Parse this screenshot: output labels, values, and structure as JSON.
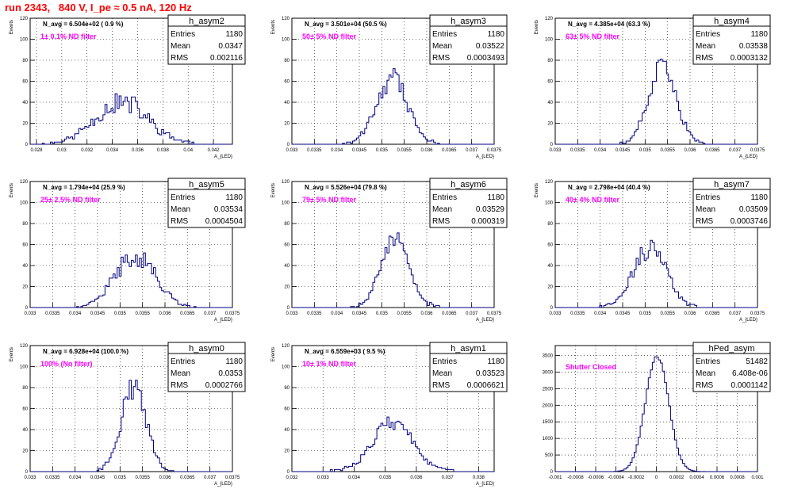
{
  "page": {
    "title": "run 2343,   840 V, I_pe ≈ 0.5 nA, 120 Hz"
  },
  "chart_data": [
    {
      "type": "bar",
      "name": "h_asym2",
      "stats": {
        "entries": "1180",
        "mean": "0.0347",
        "rms": "0.002116"
      },
      "navg": "N_avg = 6.504e+02 ( 0.9 %)",
      "filter": "1± 0.1% ND filter",
      "ylabel": "Events",
      "xlabel": "A_{LED}",
      "xlim": [
        0.0275,
        0.0435
      ],
      "ylim": [
        0,
        120
      ],
      "xticks": [
        "0.028",
        "0.03",
        "0.032",
        "0.034",
        "0.036",
        "0.038",
        "0.04",
        "0.042"
      ],
      "xtick_values": [
        0.028,
        0.03,
        0.032,
        0.034,
        0.036,
        0.038,
        0.04,
        0.042
      ],
      "yticks": [
        "0",
        "20",
        "40",
        "60",
        "80",
        "100",
        "120"
      ],
      "ytick_values": [
        0,
        20,
        40,
        60,
        80,
        100,
        120
      ],
      "hist": {
        "mean": 0.0347,
        "sigma": 0.0021,
        "peak": 40,
        "noise": 0.28,
        "seed": 11,
        "bins": 100
      }
    },
    {
      "type": "bar",
      "name": "h_asym3",
      "stats": {
        "entries": "1180",
        "mean": "0.03522",
        "rms": "0.0003493"
      },
      "navg": "N_avg = 3.501e+04 (50.5 %)",
      "filter": "50± 5% ND filter",
      "ylabel": "Events",
      "xlabel": "A_{LED}",
      "xlim": [
        0.033,
        0.0375
      ],
      "ylim": [
        0,
        120
      ],
      "xticks": [
        "0.033",
        "0.0335",
        "0.034",
        "0.0345",
        "0.035",
        "0.0355",
        "0.036",
        "0.0365",
        "0.037",
        "0.0375"
      ],
      "xtick_values": [
        0.033,
        0.0335,
        0.034,
        0.0345,
        0.035,
        0.0355,
        0.036,
        0.0365,
        0.037,
        0.0375
      ],
      "yticks": [
        "0",
        "20",
        "40",
        "60",
        "80",
        "100",
        "120"
      ],
      "ytick_values": [
        0,
        20,
        40,
        60,
        80,
        100,
        120
      ],
      "hist": {
        "mean": 0.03522,
        "sigma": 0.00035,
        "peak": 62,
        "noise": 0.18,
        "seed": 23,
        "bins": 100
      }
    },
    {
      "type": "bar",
      "name": "h_asym4",
      "stats": {
        "entries": "1180",
        "mean": "0.03538",
        "rms": "0.0003132"
      },
      "navg": "N_avg = 4.385e+04 (63.3 %)",
      "filter": "63± 5% ND filter",
      "ylabel": "Events",
      "xlabel": "A_{LED}",
      "xlim": [
        0.033,
        0.0375
      ],
      "ylim": [
        0,
        120
      ],
      "xticks": [
        "0.033",
        "0.0335",
        "0.034",
        "0.0345",
        "0.035",
        "0.0355",
        "0.036",
        "0.0365",
        "0.037",
        "0.0375"
      ],
      "xtick_values": [
        0.033,
        0.0335,
        0.034,
        0.0345,
        0.035,
        0.0355,
        0.036,
        0.0365,
        0.037,
        0.0375
      ],
      "yticks": [
        "0",
        "20",
        "40",
        "60",
        "80",
        "100",
        "120"
      ],
      "ytick_values": [
        0,
        20,
        40,
        60,
        80,
        100,
        120
      ],
      "hist": {
        "mean": 0.03538,
        "sigma": 0.00031,
        "peak": 72,
        "noise": 0.16,
        "seed": 37,
        "bins": 100
      }
    },
    {
      "type": "bar",
      "name": "h_asym5",
      "stats": {
        "entries": "1180",
        "mean": "0.03534",
        "rms": "0.0004504"
      },
      "navg": "N_avg = 1.794e+04 (25.9 %)",
      "filter": "25± 2.5% ND filter",
      "ylabel": "Events",
      "xlabel": "A_{LED}",
      "xlim": [
        0.033,
        0.0375
      ],
      "ylim": [
        0,
        120
      ],
      "xticks": [
        "0.033",
        "0.0335",
        "0.034",
        "0.0345",
        "0.035",
        "0.0355",
        "0.036",
        "0.0365",
        "0.037",
        "0.0375"
      ],
      "xtick_values": [
        0.033,
        0.0335,
        0.034,
        0.0345,
        0.035,
        0.0355,
        0.036,
        0.0365,
        0.037,
        0.0375
      ],
      "yticks": [
        "0",
        "20",
        "40",
        "60",
        "80",
        "100",
        "120"
      ],
      "ytick_values": [
        0,
        20,
        40,
        60,
        80,
        100,
        120
      ],
      "hist": {
        "mean": 0.03534,
        "sigma": 0.00045,
        "peak": 50,
        "noise": 0.2,
        "seed": 41,
        "bins": 100
      }
    },
    {
      "type": "bar",
      "name": "h_asym6",
      "stats": {
        "entries": "1180",
        "mean": "0.03529",
        "rms": "0.000319"
      },
      "navg": "N_avg = 5.526e+04 (79.8 %)",
      "filter": "79± 5% ND filter",
      "ylabel": "Events",
      "xlabel": "A_{LED}",
      "xlim": [
        0.033,
        0.0375
      ],
      "ylim": [
        0,
        120
      ],
      "xticks": [
        "0.033",
        "0.0335",
        "0.034",
        "0.0345",
        "0.035",
        "0.0355",
        "0.036",
        "0.0365",
        "0.037",
        "0.0375"
      ],
      "xtick_values": [
        0.033,
        0.0335,
        0.034,
        0.0345,
        0.035,
        0.0355,
        0.036,
        0.0365,
        0.037,
        0.0375
      ],
      "yticks": [
        "0",
        "20",
        "40",
        "60",
        "80",
        "100",
        "120"
      ],
      "ytick_values": [
        0,
        20,
        40,
        60,
        80,
        100,
        120
      ],
      "hist": {
        "mean": 0.03529,
        "sigma": 0.00032,
        "peak": 64,
        "noise": 0.16,
        "seed": 53,
        "bins": 100
      }
    },
    {
      "type": "bar",
      "name": "h_asym7",
      "stats": {
        "entries": "1180",
        "mean": "0.03509",
        "rms": "0.0003746"
      },
      "navg": "N_avg = 2.798e+04 (40.4 %)",
      "filter": "40± 4% ND filter",
      "ylabel": "Events",
      "xlabel": "A_{LED}",
      "xlim": [
        0.033,
        0.0375
      ],
      "ylim": [
        0,
        120
      ],
      "xticks": [
        "0.033",
        "0.0335",
        "0.034",
        "0.0345",
        "0.035",
        "0.0355",
        "0.036",
        "0.0365",
        "0.037",
        "0.0375"
      ],
      "xtick_values": [
        0.033,
        0.0335,
        0.034,
        0.0345,
        0.035,
        0.0355,
        0.036,
        0.0365,
        0.037,
        0.0375
      ],
      "yticks": [
        "0",
        "20",
        "40",
        "60",
        "80",
        "100",
        "120"
      ],
      "ytick_values": [
        0,
        20,
        40,
        60,
        80,
        100,
        120
      ],
      "hist": {
        "mean": 0.03509,
        "sigma": 0.00037,
        "peak": 56,
        "noise": 0.22,
        "seed": 67,
        "bins": 100
      }
    },
    {
      "type": "bar",
      "name": "h_asym0",
      "stats": {
        "entries": "1180",
        "mean": "0.0353",
        "rms": "0.0002766"
      },
      "navg": "N_avg = 6.928e+04 (100.0 %)",
      "filter": "100% (No filter)",
      "ylabel": "Events",
      "xlabel": "A_{LED}",
      "xlim": [
        0.033,
        0.0375
      ],
      "ylim": [
        0,
        120
      ],
      "xticks": [
        "0.033",
        "0.0335",
        "0.034",
        "0.0345",
        "0.035",
        "0.0355",
        "0.036",
        "0.0365",
        "0.037",
        "0.0375"
      ],
      "xtick_values": [
        0.033,
        0.0335,
        0.034,
        0.0345,
        0.035,
        0.0355,
        0.036,
        0.0365,
        0.037,
        0.0375
      ],
      "yticks": [
        "0",
        "20",
        "40",
        "60",
        "80",
        "100",
        "120"
      ],
      "ytick_values": [
        0,
        20,
        40,
        60,
        80,
        100,
        120
      ],
      "hist": {
        "mean": 0.0353,
        "sigma": 0.00028,
        "peak": 80,
        "noise": 0.16,
        "seed": 79,
        "bins": 100
      }
    },
    {
      "type": "bar",
      "name": "h_asym1",
      "stats": {
        "entries": "1180",
        "mean": "0.03523",
        "rms": "0.0006621"
      },
      "navg": "N_avg = 6.559e+03 ( 9.5 %)",
      "filter": "10± 1% ND filter",
      "ylabel": "Events",
      "xlabel": "A_{LED}",
      "xlim": [
        0.032,
        0.0385
      ],
      "ylim": [
        0,
        120
      ],
      "xticks": [
        "0.032",
        "0.033",
        "0.034",
        "0.035",
        "0.036",
        "0.037",
        "0.038"
      ],
      "xtick_values": [
        0.032,
        0.033,
        0.034,
        0.035,
        0.036,
        0.037,
        0.038
      ],
      "yticks": [
        "0",
        "20",
        "40",
        "60",
        "80",
        "100",
        "120"
      ],
      "ytick_values": [
        0,
        20,
        40,
        60,
        80,
        100,
        120
      ],
      "hist": {
        "mean": 0.03523,
        "sigma": 0.00066,
        "peak": 46,
        "noise": 0.18,
        "seed": 83,
        "bins": 100
      }
    },
    {
      "type": "bar",
      "name": "hPed_asym",
      "stats": {
        "entries": "51482",
        "mean": "6.408e-06",
        "rms": "0.0001142"
      },
      "navg": "",
      "filter": "Shutter Closed",
      "ylabel": "",
      "xlabel": "",
      "xlim": [
        -0.001,
        0.001
      ],
      "ylim": [
        0,
        3800
      ],
      "xticks": [
        "-0.001",
        "-0.0008",
        "-0.0006",
        "-0.0004",
        "-0.0002",
        "0",
        "0.0002",
        "0.0004",
        "0.0006",
        "0.0008",
        "0.001"
      ],
      "xtick_values": [
        -0.001,
        -0.0008,
        -0.0006,
        -0.0004,
        -0.0002,
        0,
        0.0002,
        0.0004,
        0.0006,
        0.0008,
        0.001
      ],
      "yticks": [
        "0",
        "500",
        "1000",
        "1500",
        "2000",
        "2500",
        "3000",
        "3500"
      ],
      "ytick_values": [
        0,
        500,
        1000,
        1500,
        2000,
        2500,
        3000,
        3500
      ],
      "hist": {
        "mean": 6.4e-06,
        "sigma": 0.000114,
        "peak": 3500,
        "noise": 0.02,
        "seed": 97,
        "bins": 100
      }
    }
  ]
}
